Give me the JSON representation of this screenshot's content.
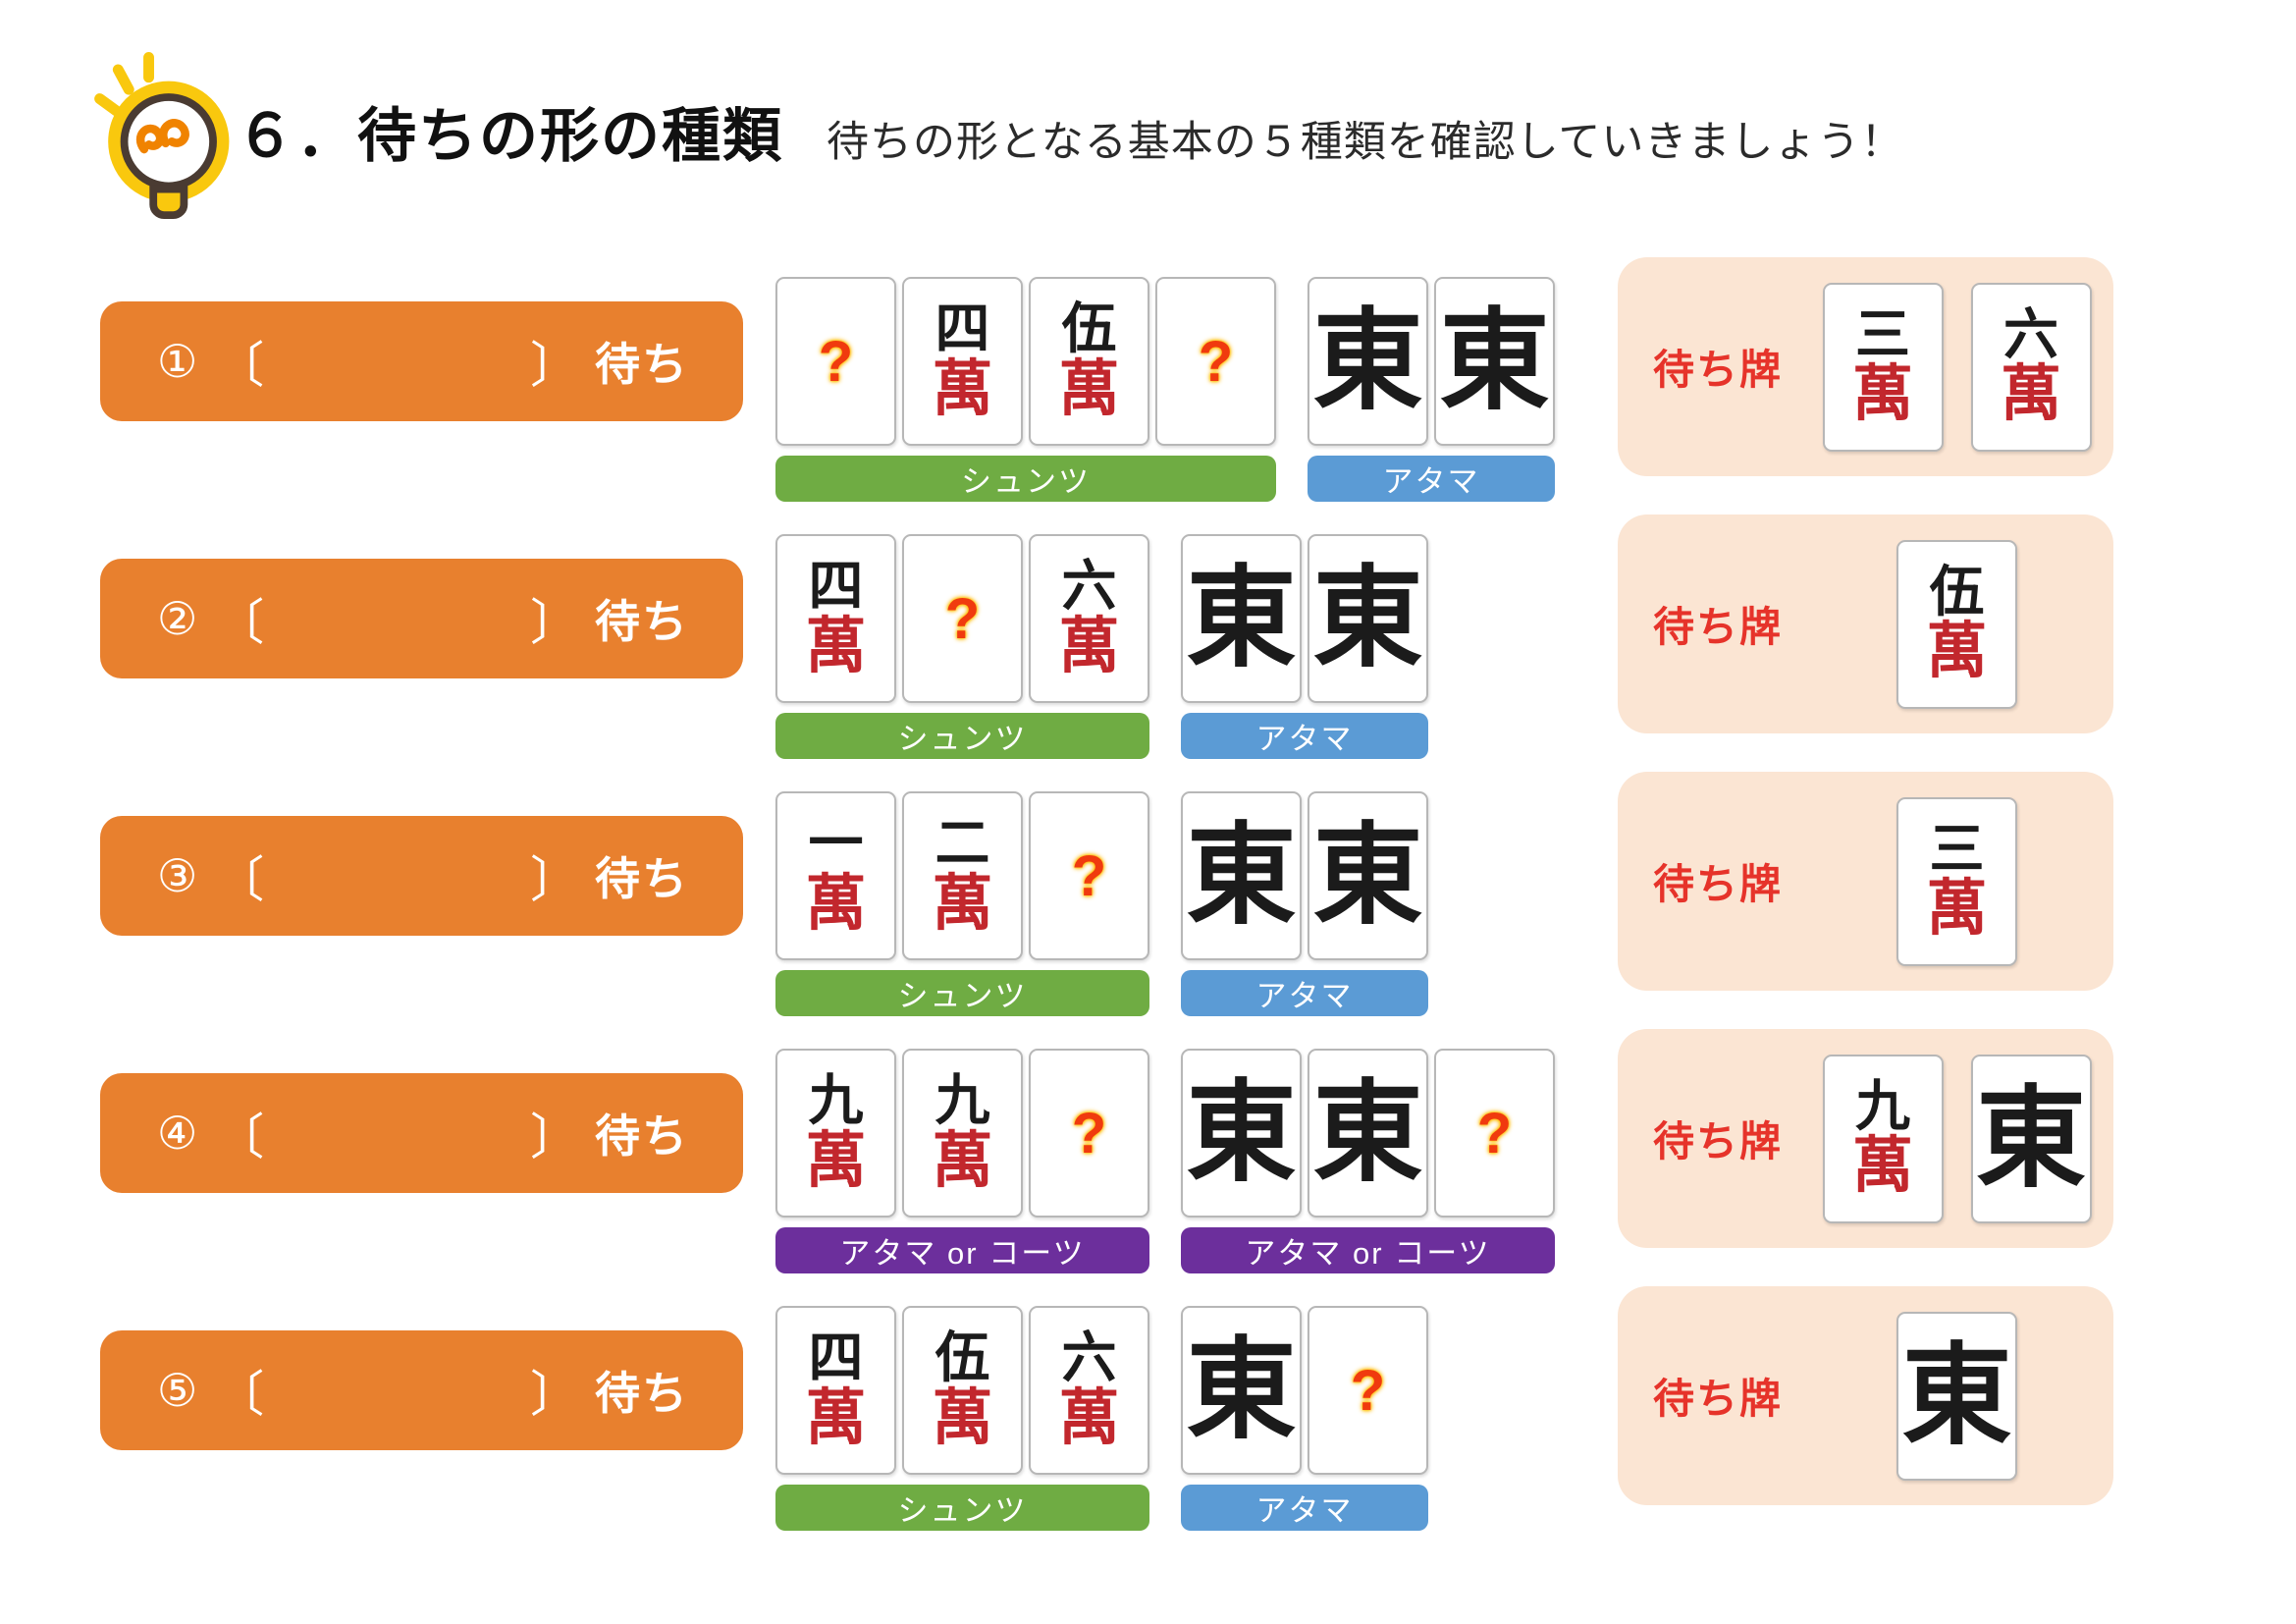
{
  "header": {
    "title": "６．待ちの形の種類",
    "subtitle": "待ちの形となる基本の５種類を確認していきましょう！",
    "icon": "lightbulb-icon"
  },
  "shared": {
    "wait_tile_label": "待ち牌",
    "bracket_open": "〔",
    "bracket_close": "〕",
    "wait_suffix": "待ち"
  },
  "colors": {
    "button_orange": "#e8802e",
    "shuntsu_green": "#6fac43",
    "atama_blue": "#5b9bd5",
    "koutsu_purple": "#6c2f9c",
    "answer_peach": "#fbe5d3",
    "red_text": "#e6332a",
    "man_red": "#c2272d",
    "tile_black": "#1b1b1b"
  },
  "tile_glyphs": {
    "1m": {
      "top": "一",
      "bottom": "萬"
    },
    "2m": {
      "top": "二",
      "bottom": "萬"
    },
    "3m": {
      "top": "三",
      "bottom": "萬"
    },
    "4m": {
      "top": "四",
      "bottom": "萬"
    },
    "5m": {
      "top": "伍",
      "bottom": "萬"
    },
    "6m": {
      "top": "六",
      "bottom": "萬"
    },
    "9m": {
      "top": "九",
      "bottom": "萬"
    },
    "east": {
      "char": "東"
    },
    "unknown": {
      "char": "?"
    }
  },
  "rows": [
    {
      "number": "①",
      "groups": [
        {
          "label": "シュンツ",
          "color_key": "shuntsu_green",
          "tiles": [
            "unknown",
            "4m",
            "5m",
            "unknown"
          ]
        },
        {
          "label": "アタマ",
          "color_key": "atama_blue",
          "tiles": [
            "east",
            "east"
          ]
        }
      ],
      "answer_tiles": [
        "3m",
        "6m"
      ]
    },
    {
      "number": "②",
      "groups": [
        {
          "label": "シュンツ",
          "color_key": "shuntsu_green",
          "tiles": [
            "4m",
            "unknown",
            "6m"
          ]
        },
        {
          "label": "アタマ",
          "color_key": "atama_blue",
          "tiles": [
            "east",
            "east"
          ]
        }
      ],
      "answer_tiles": [
        "5m"
      ]
    },
    {
      "number": "③",
      "groups": [
        {
          "label": "シュンツ",
          "color_key": "shuntsu_green",
          "tiles": [
            "1m",
            "2m",
            "unknown"
          ]
        },
        {
          "label": "アタマ",
          "color_key": "atama_blue",
          "tiles": [
            "east",
            "east"
          ]
        }
      ],
      "answer_tiles": [
        "3m"
      ]
    },
    {
      "number": "④",
      "groups": [
        {
          "label": "アタマ or コーツ",
          "color_key": "koutsu_purple",
          "tiles": [
            "9m",
            "9m",
            "unknown"
          ]
        },
        {
          "label": "アタマ or コーツ",
          "color_key": "koutsu_purple",
          "tiles": [
            "east",
            "east",
            "unknown"
          ]
        }
      ],
      "answer_tiles": [
        "9m",
        "east"
      ]
    },
    {
      "number": "⑤",
      "groups": [
        {
          "label": "シュンツ",
          "color_key": "shuntsu_green",
          "tiles": [
            "4m",
            "5m",
            "6m"
          ]
        },
        {
          "label": "アタマ",
          "color_key": "atama_blue",
          "tiles": [
            "east",
            "unknown"
          ]
        }
      ],
      "answer_tiles": [
        "east"
      ]
    }
  ],
  "layout_rows_top": [
    262,
    524,
    786,
    1048,
    1310
  ]
}
